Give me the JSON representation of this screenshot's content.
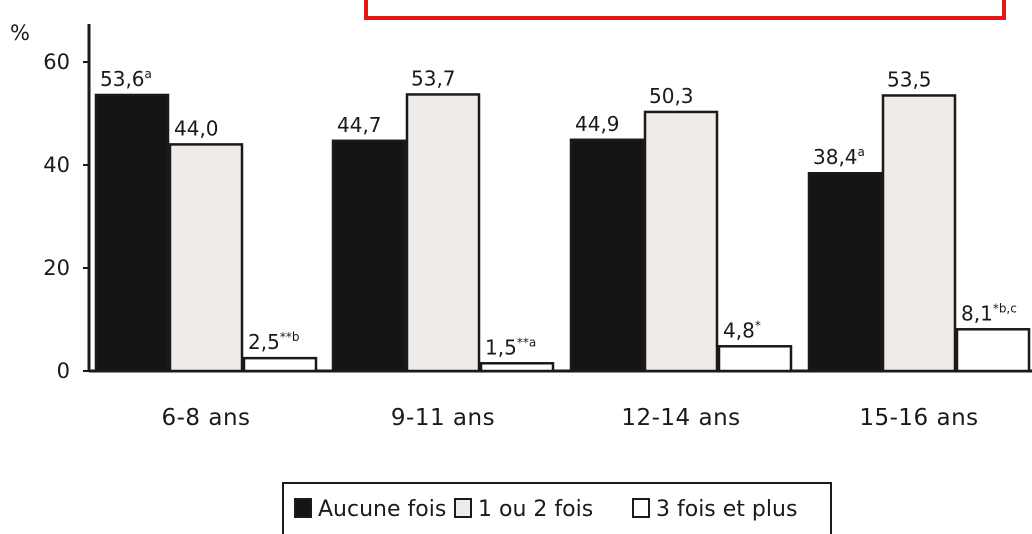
{
  "chart_data": {
    "type": "bar",
    "ylabel": "%",
    "ylim": [
      0,
      60
    ],
    "yticks": [
      "0",
      "20",
      "40",
      "60"
    ],
    "categories": [
      "6-8 ans",
      "9-11 ans",
      "12-14 ans",
      "15-16 ans"
    ],
    "series": [
      {
        "name": "Aucune fois",
        "values": [
          53.6,
          44.7,
          44.9,
          38.4
        ],
        "labels": [
          "53,6",
          "44,7",
          "44,9",
          "38,4"
        ],
        "superscripts": [
          "a",
          "",
          "",
          "a"
        ],
        "color": "#141414"
      },
      {
        "name": "1 ou 2 fois",
        "values": [
          44.0,
          53.7,
          50.3,
          53.5
        ],
        "labels": [
          "44,0",
          "53,7",
          "50,3",
          "53,5"
        ],
        "superscripts": [
          "",
          "",
          "",
          ""
        ],
        "color": "#efebe8"
      },
      {
        "name": "3 fois et plus",
        "values": [
          2.5,
          1.5,
          4.8,
          8.1
        ],
        "labels": [
          "2,5",
          "1,5",
          "4,8",
          "8,1"
        ],
        "superscripts": [
          "**b",
          "**a",
          "*",
          "*b,c"
        ],
        "color": "#ffffff"
      }
    ],
    "legend_position": "bottom-center",
    "grid": false
  }
}
